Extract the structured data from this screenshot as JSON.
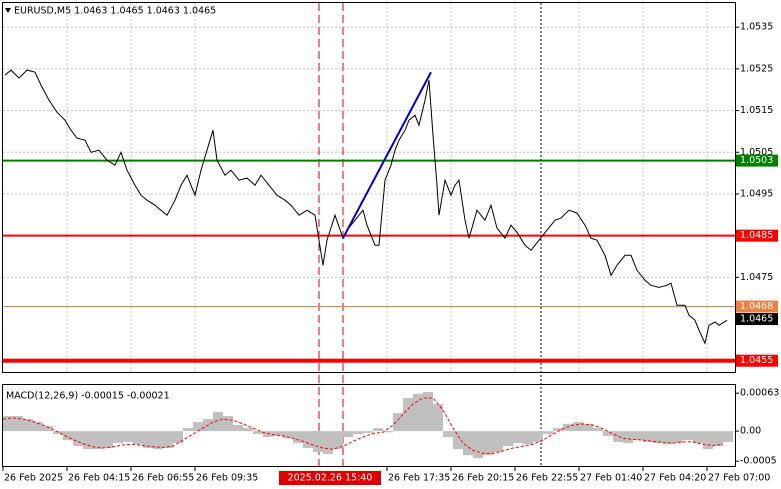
{
  "chart_data": [
    {
      "type": "line",
      "title": "EURUSD,M5  1.0463 1.0465 1.0463 1.0465",
      "color": "#000000",
      "x": [
        1,
        4,
        8,
        12,
        16,
        19,
        23,
        27,
        31,
        34,
        37,
        41,
        44,
        48,
        52,
        56,
        59,
        62,
        66,
        69,
        72,
        76,
        79,
        82,
        86,
        89,
        92,
        96,
        99,
        102,
        105,
        107,
        111,
        114,
        118,
        122,
        126,
        129,
        133,
        137,
        141,
        144,
        148,
        152,
        156,
        158,
        160,
        162,
        166,
        170,
        172,
        176,
        180,
        182,
        186,
        188,
        191,
        194,
        196,
        198,
        201,
        203,
        206,
        208,
        211,
        213,
        215,
        217,
        218,
        221,
        224,
        226,
        228,
        231,
        233,
        237,
        241,
        244,
        247,
        251,
        254,
        257,
        261,
        264,
        268,
        272,
        276,
        279,
        283,
        287,
        291,
        294,
        297,
        301,
        304,
        307,
        311,
        314,
        317,
        321,
        324,
        328,
        332,
        334,
        337,
        341,
        343,
        346,
        348,
        351,
        353,
        356,
        358,
        362
      ],
      "values": [
        1.05235,
        1.05247,
        1.05228,
        1.05247,
        1.05242,
        1.05211,
        1.05175,
        1.05146,
        1.05127,
        1.05103,
        1.05084,
        1.05079,
        1.0505,
        1.05055,
        1.05031,
        1.05019,
        1.0505,
        1.05007,
        1.04971,
        1.04947,
        1.04935,
        1.04923,
        1.04911,
        1.04899,
        1.04935,
        1.04971,
        1.04995,
        1.04947,
        1.05007,
        1.05055,
        1.05103,
        1.05031,
        1.04995,
        1.05007,
        1.04983,
        1.04988,
        1.04971,
        1.04995,
        1.04971,
        1.04947,
        1.04935,
        1.04923,
        1.04899,
        1.04911,
        1.04899,
        1.04839,
        1.04779,
        1.04839,
        1.04899,
        1.04844,
        1.04863,
        1.04887,
        1.04911,
        1.04875,
        1.04827,
        1.04827,
        1.04983,
        1.05019,
        1.05055,
        1.05079,
        1.05103,
        1.05127,
        1.05139,
        1.05115,
        1.05175,
        1.05223,
        1.05091,
        1.04971,
        1.04899,
        1.04983,
        1.04947,
        1.04971,
        1.04983,
        1.04887,
        1.04844,
        1.04911,
        1.04887,
        1.04923,
        1.04868,
        1.04844,
        1.04875,
        1.04858,
        1.04827,
        1.04815,
        1.04839,
        1.04863,
        1.04887,
        1.04892,
        1.04911,
        1.04904,
        1.04875,
        1.04844,
        1.04839,
        1.04803,
        1.04755,
        1.04779,
        1.04803,
        1.04803,
        1.04767,
        1.04743,
        1.04731,
        1.04726,
        1.04731,
        1.04736,
        1.04683,
        1.04683,
        1.04659,
        1.04647,
        1.04623,
        1.04592,
        1.04635,
        1.04643,
        1.04635,
        1.04647
      ],
      "xlim": [
        0,
        366
      ],
      "ylim": [
        1.04523,
        1.05408
      ],
      "yticks": [
        1.0535,
        1.0525,
        1.0515,
        1.0505,
        1.0495,
        1.0475
      ],
      "xticks": [
        {
          "value": 0,
          "label": "26 Feb 2025"
        },
        {
          "value": 32,
          "label": "26 Feb 04:15"
        },
        {
          "value": 64,
          "label": "26 Feb 06:55"
        },
        {
          "value": 96,
          "label": "26 Feb 09:35"
        },
        {
          "value": 192,
          "label": "26 Feb 17:35"
        },
        {
          "value": 224,
          "label": "26 Feb 20:15"
        },
        {
          "value": 256,
          "label": "26 Feb 22:55"
        },
        {
          "value": 288,
          "label": "27 Feb 01:40"
        },
        {
          "value": 320,
          "label": "27 Feb 04:20"
        },
        {
          "value": 352,
          "label": "27 Feb 07:00"
        }
      ],
      "grid": true,
      "levels": [
        {
          "value": 1.0503,
          "color": "#008000",
          "line_width": 2
        },
        {
          "value": 1.0485,
          "color": "#ff0000",
          "line_width": 2
        },
        {
          "value": 1.0468,
          "color": "#f08040",
          "line_width": 1
        },
        {
          "value": 1.0455,
          "color": "#ff0000",
          "line_width": 4
        }
      ],
      "current_price": 1.0465,
      "vlines": [
        {
          "x": 158,
          "color": "#e00000",
          "style": "dashed"
        },
        {
          "x": 170,
          "color": "#e00000",
          "style": "dashed"
        },
        {
          "x": 269,
          "color": "#000000",
          "style": "dotted"
        }
      ],
      "trendline": {
        "x": [
          170,
          214
        ],
        "values": [
          1.04844,
          1.05242
        ],
        "color": "#0000c0"
      },
      "cursor_label": "2025.02.26 15:40"
    },
    {
      "type": "macd",
      "title": "MACD(12,26,9) -0.00015 -0.00021",
      "hist_color": "#c0c0c0",
      "signal_color": "#ff0000",
      "x": [
        0,
        5,
        10,
        15,
        20,
        25,
        30,
        35,
        40,
        45,
        50,
        55,
        60,
        65,
        70,
        75,
        80,
        85,
        90,
        95,
        100,
        105,
        110,
        115,
        120,
        125,
        130,
        135,
        140,
        145,
        150,
        155,
        160,
        165,
        170,
        175,
        180,
        185,
        190,
        195,
        200,
        205,
        210,
        215,
        220,
        225,
        230,
        235,
        240,
        245,
        250,
        255,
        260,
        265,
        270,
        275,
        280,
        285,
        290,
        295,
        300,
        305,
        310,
        315,
        320,
        325,
        330,
        335,
        340,
        345,
        350,
        355,
        360
      ],
      "histogram": [
        0.00025,
        0.00025,
        0.0002,
        0.00015,
        8e-05,
        -5e-05,
        -0.00015,
        -0.00025,
        -0.0003,
        -0.0003,
        -0.00028,
        -0.0002,
        -0.00018,
        -0.00022,
        -0.00028,
        -0.0003,
        -0.00028,
        -0.0002,
        5e-05,
        0.00015,
        0.0002,
        0.00032,
        0.00025,
        0.0001,
        5e-05,
        -5e-05,
        -0.0001,
        -8e-05,
        -0.00012,
        -0.0002,
        -0.00028,
        -0.00035,
        -0.00038,
        -0.0003,
        -0.0001,
        -5e-05,
        -3e-05,
        5e-05,
        -2e-05,
        0.0003,
        0.00055,
        0.00062,
        0.00065,
        0.00045,
        -0.0001,
        -0.0003,
        -0.0004,
        -0.00045,
        -0.0004,
        -0.00035,
        -0.00025,
        -0.0002,
        -0.00022,
        -0.00018,
        -5e-05,
        5e-05,
        0.00012,
        0.00015,
        0.00012,
        5e-05,
        -8e-05,
        -0.00018,
        -0.0002,
        -0.00015,
        -0.00018,
        -0.0002,
        -0.00022,
        -0.0002,
        -0.00015,
        -0.0002,
        -0.0003,
        -0.00025,
        -0.00018
      ],
      "signal": [
        0.0002,
        0.00022,
        0.0002,
        0.00016,
        0.0001,
        3e-05,
        -6e-05,
        -0.00014,
        -0.00021,
        -0.00026,
        -0.00028,
        -0.00026,
        -0.00023,
        -0.00022,
        -0.00024,
        -0.00026,
        -0.00027,
        -0.00025,
        -0.00015,
        -5e-05,
        5e-05,
        0.00015,
        0.0002,
        0.00018,
        0.00012,
        5e-05,
        -2e-05,
        -6e-05,
        -8e-05,
        -0.00012,
        -0.00017,
        -0.00023,
        -0.00028,
        -0.0003,
        -0.00025,
        -0.00017,
        -0.0001,
        -4e-05,
        -2e-05,
        0.0001,
        0.00028,
        0.00045,
        0.00055,
        0.00055,
        0.00035,
        5e-05,
        -0.0002,
        -0.00032,
        -0.00037,
        -0.00037,
        -0.00033,
        -0.00028,
        -0.00025,
        -0.00022,
        -0.00015,
        -5e-05,
        4e-05,
        0.0001,
        0.00012,
        0.0001,
        4e-05,
        -5e-05,
        -0.00012,
        -0.00014,
        -0.00015,
        -0.00017,
        -0.00019,
        -0.0002,
        -0.00018,
        -0.00018,
        -0.00022,
        -0.00024,
        -0.00022
      ],
      "xlim": [
        0,
        366
      ],
      "ylim": [
        -0.00058,
        0.00075
      ],
      "yticks": [
        0.00063,
        {
          "value": 0,
          "label": "0.00"
        },
        -0.0005
      ]
    }
  ]
}
